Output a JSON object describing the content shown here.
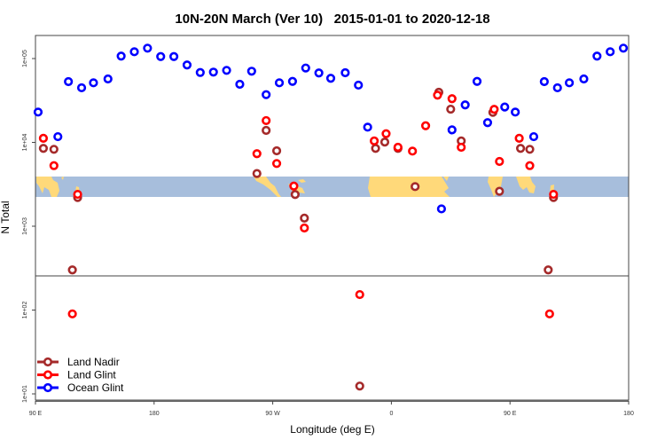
{
  "chart_data": {
    "type": "scatter",
    "title": "10N-20N March (Ver 10)   2015-01-01 to 2020-12-18",
    "xlabel": "Longitude (deg E)",
    "ylabel": "N Total",
    "y_scale": "log",
    "xlim": [
      90,
      540
    ],
    "ylim_log10": [
      0.75,
      5.27
    ],
    "x_ticks": [
      {
        "value": 90,
        "label": "90 E"
      },
      {
        "value": 180,
        "label": "180"
      },
      {
        "value": 270,
        "label": "90 W"
      },
      {
        "value": 360,
        "label": "0"
      },
      {
        "value": 450,
        "label": "90 E"
      },
      {
        "value": 540,
        "label": "180"
      }
    ],
    "y_ticks": [
      {
        "value": 10,
        "label": "1e+01"
      },
      {
        "value": 100,
        "label": "1e+02"
      },
      {
        "value": 1000,
        "label": "1e+03"
      },
      {
        "value": 10000,
        "label": "1e+04"
      },
      {
        "value": 100000,
        "label": "1e+05"
      }
    ],
    "grid": false,
    "legend_position": "bottom-left",
    "background_map": "continents 10N-20N (land yellow, ocean blue)",
    "colors": {
      "land": "#FFD97A",
      "ocean": "#A7BEDC"
    },
    "series": [
      {
        "name": "Land Nadir",
        "color": "#A52A2A",
        "points": [
          [
            96,
            8480
          ],
          [
            104,
            8270
          ],
          [
            122,
            2200
          ],
          [
            118,
            301
          ],
          [
            265,
            13900
          ],
          [
            258,
            4250
          ],
          [
            273,
            7930
          ],
          [
            287,
            2390
          ],
          [
            294,
            1250
          ],
          [
            348,
            8480
          ],
          [
            355,
            10100
          ],
          [
            365,
            8480
          ],
          [
            378,
            2970
          ],
          [
            396,
            39600
          ],
          [
            405,
            24900
          ],
          [
            413,
            10400
          ],
          [
            437,
            22800
          ],
          [
            442,
            2610
          ],
          [
            458,
            8480
          ],
          [
            465,
            8270
          ],
          [
            483,
            2200
          ],
          [
            479,
            301
          ],
          [
            336,
            12.4
          ]
        ]
      },
      {
        "name": "Land Glint",
        "color": "#FF0000",
        "points": [
          [
            96,
            11200
          ],
          [
            104,
            5280
          ],
          [
            122,
            2400
          ],
          [
            265,
            18200
          ],
          [
            258,
            7330
          ],
          [
            273,
            5600
          ],
          [
            286,
            3010
          ],
          [
            294,
            953
          ],
          [
            347,
            10400
          ],
          [
            356,
            12700
          ],
          [
            365,
            8750
          ],
          [
            376,
            7870
          ],
          [
            386,
            15800
          ],
          [
            395,
            36600
          ],
          [
            406,
            33200
          ],
          [
            413,
            8750
          ],
          [
            438,
            24800
          ],
          [
            442,
            5920
          ],
          [
            457,
            11200
          ],
          [
            465,
            5280
          ],
          [
            483,
            2400
          ],
          [
            118,
            90
          ],
          [
            336,
            153
          ],
          [
            480,
            90
          ]
        ]
      },
      {
        "name": "Ocean Glint",
        "color": "#0000FF",
        "points": [
          [
            92,
            23000
          ],
          [
            107,
            11700
          ],
          [
            115,
            53100
          ],
          [
            125,
            44800
          ],
          [
            134,
            51400
          ],
          [
            145,
            57100
          ],
          [
            155,
            106900
          ],
          [
            165,
            120600
          ],
          [
            175,
            133000
          ],
          [
            185,
            105700
          ],
          [
            195,
            105700
          ],
          [
            205,
            83800
          ],
          [
            215,
            68200
          ],
          [
            225,
            68900
          ],
          [
            235,
            72300
          ],
          [
            245,
            49300
          ],
          [
            254,
            70600
          ],
          [
            265,
            37100
          ],
          [
            275,
            51400
          ],
          [
            285,
            53400
          ],
          [
            295,
            77100
          ],
          [
            305,
            67300
          ],
          [
            314,
            58100
          ],
          [
            325,
            67700
          ],
          [
            335,
            48200
          ],
          [
            342,
            15200
          ],
          [
            398,
            1610
          ],
          [
            406,
            14100
          ],
          [
            416,
            28000
          ],
          [
            425,
            53400
          ],
          [
            433,
            17200
          ],
          [
            446,
            26400
          ],
          [
            454,
            23000
          ],
          [
            468,
            11700
          ],
          [
            476,
            53100
          ],
          [
            486,
            44800
          ],
          [
            495,
            51400
          ],
          [
            506,
            57100
          ],
          [
            516,
            106900
          ],
          [
            526,
            120600
          ],
          [
            536,
            133000
          ]
        ]
      }
    ]
  }
}
